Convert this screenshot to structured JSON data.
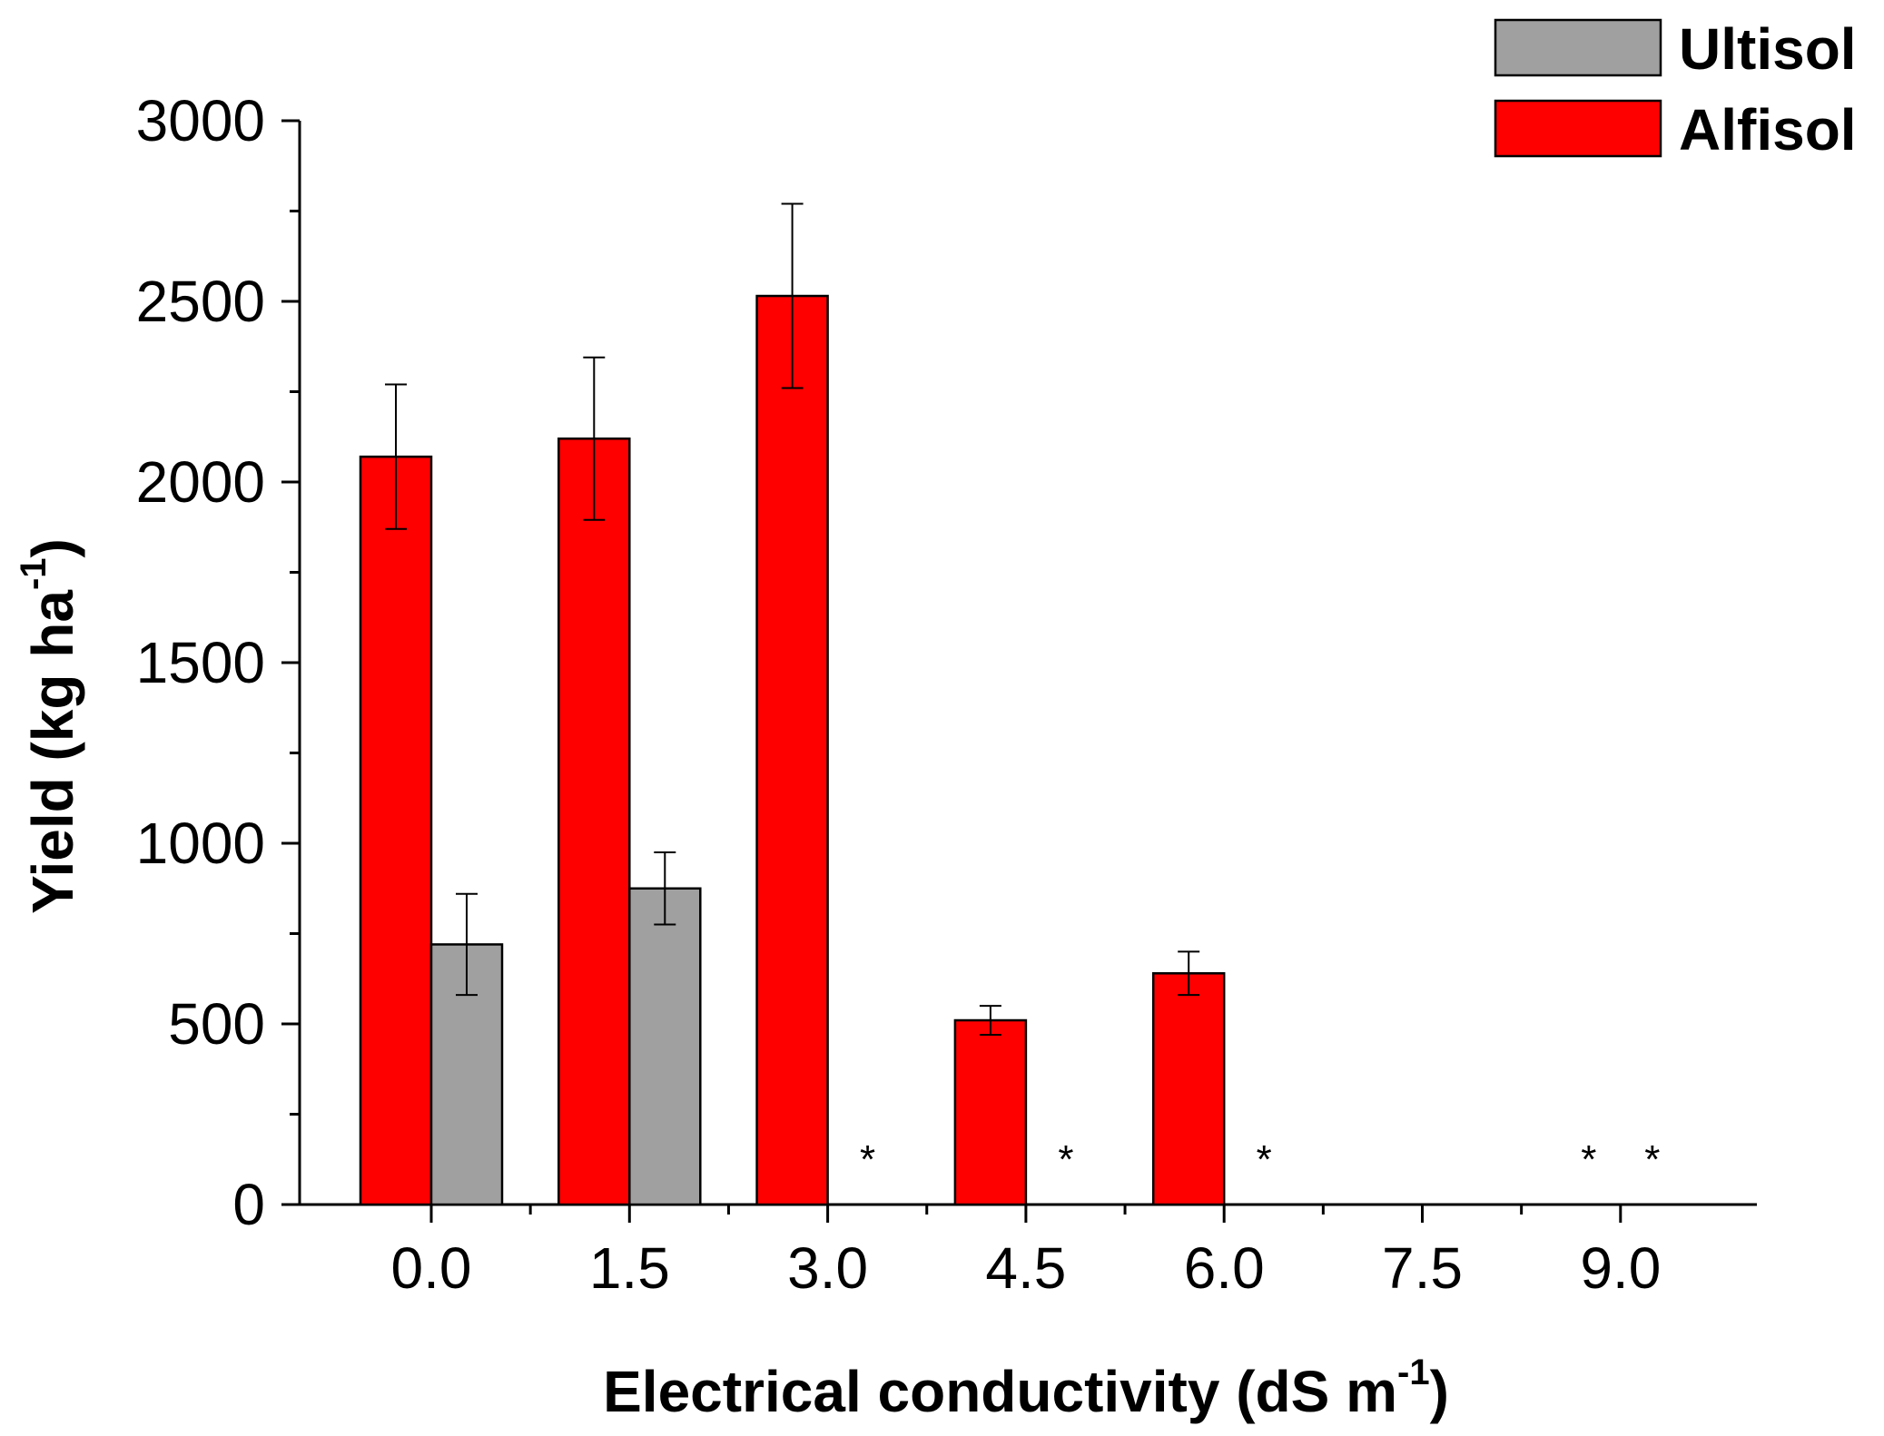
{
  "chart_data": {
    "type": "bar",
    "title": "",
    "xlabel": "Electrical conductivity (dS m",
    "xlabel_sup": "-1",
    "xlabel_close": ")",
    "ylabel": "Yield (kg ha",
    "ylabel_sup": "-1",
    "ylabel_close": ")",
    "ylim": [
      0,
      3000
    ],
    "yticks": [
      0,
      500,
      1000,
      1500,
      2000,
      2500,
      3000
    ],
    "categories": [
      "0.0",
      "1.5",
      "3.0",
      "4.5",
      "6.0",
      "7.5",
      "9.0"
    ],
    "legend_position": "top-right",
    "grid": false,
    "series": [
      {
        "name": "Ultisol",
        "color": "#a0a0a0",
        "values": [
          720,
          875,
          null,
          null,
          null,
          null,
          null
        ],
        "errors": [
          140,
          100,
          null,
          null,
          null,
          null,
          null
        ]
      },
      {
        "name": "Alfisol",
        "color": "#ff0000",
        "values": [
          2070,
          2120,
          2515,
          510,
          640,
          null,
          null
        ],
        "errors": [
          200,
          225,
          255,
          40,
          60,
          null,
          null
        ]
      }
    ],
    "annotations": [
      {
        "text": "*",
        "category": "3.0",
        "series": "Ultisol"
      },
      {
        "text": "*",
        "category": "4.5",
        "series": "Ultisol"
      },
      {
        "text": "*",
        "category": "6.0",
        "series": "Ultisol"
      },
      {
        "text": "*",
        "category": "9.0",
        "series": "Alfisol"
      },
      {
        "text": "*",
        "category": "9.0",
        "series": "Ultisol"
      }
    ]
  }
}
